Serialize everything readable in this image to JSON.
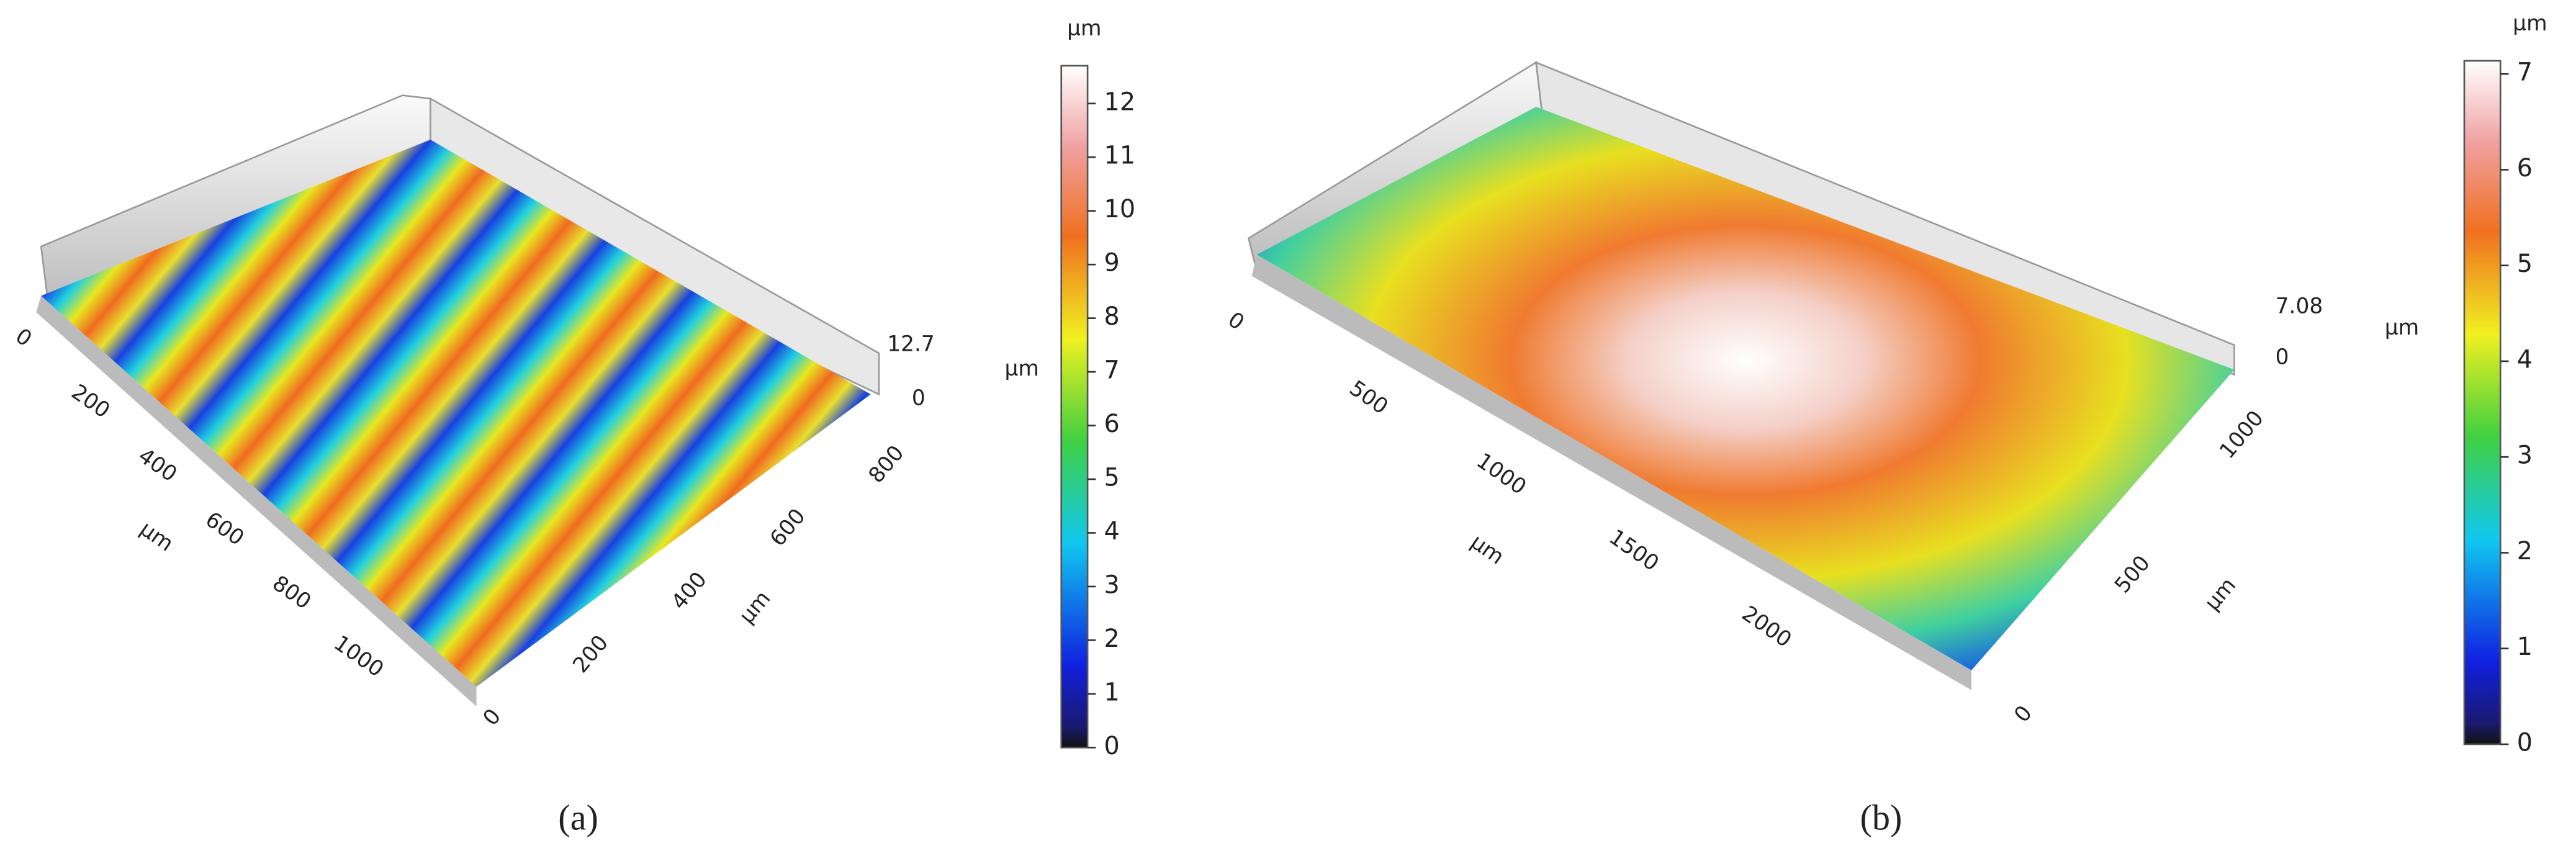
{
  "panels": [
    {
      "label": "(a)",
      "colorbar": {
        "unit": "µm",
        "ticks": [
          "0",
          "1",
          "2",
          "3",
          "4",
          "5",
          "6",
          "7",
          "8",
          "9",
          "10",
          "11",
          "12"
        ]
      },
      "z_axis": {
        "unit": "µm",
        "labels": [
          "12.7",
          "0"
        ]
      },
      "x_axis": {
        "unit": "µm",
        "ticks": [
          "0",
          "200",
          "400",
          "600",
          "800",
          "1000"
        ]
      },
      "y_axis": {
        "unit": "µm",
        "ticks": [
          "0",
          "200",
          "400",
          "600",
          "800"
        ]
      }
    },
    {
      "label": "(b)",
      "colorbar": {
        "unit": "µm",
        "ticks": [
          "0",
          "1",
          "2",
          "3",
          "4",
          "5",
          "6",
          "7"
        ]
      },
      "z_axis": {
        "unit": "µm",
        "labels": [
          "7.08",
          "0"
        ]
      },
      "x_axis": {
        "unit": "µm",
        "ticks": [
          "0",
          "500",
          "1000",
          "1500",
          "2000"
        ]
      },
      "y_axis": {
        "unit": "µm",
        "ticks": [
          "0",
          "500",
          "1000"
        ]
      }
    }
  ]
}
